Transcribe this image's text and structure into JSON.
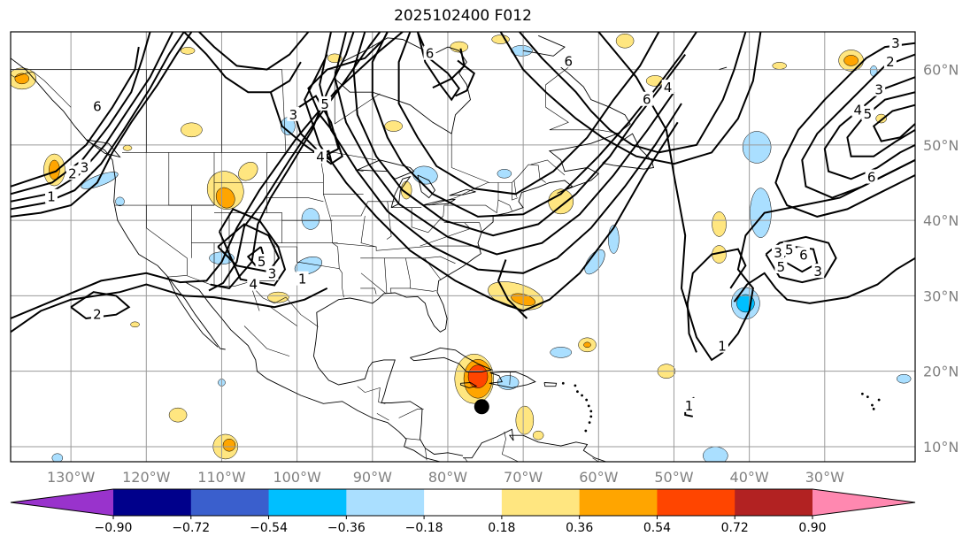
{
  "title": "2025102400 F012",
  "map": {
    "projection": "PlateCarree",
    "lon_range": [
      -138,
      -18
    ],
    "lat_range": [
      8,
      65
    ],
    "gridlines": true,
    "coastlines": true,
    "state_borders": true,
    "marker": {
      "lon": -75.5,
      "lat": 15.3,
      "shape": "filled-circle",
      "color": "#000000"
    }
  },
  "axes": {
    "lon_ticks": [
      {
        "value": -130,
        "label": "130°W"
      },
      {
        "value": -120,
        "label": "120°W"
      },
      {
        "value": -110,
        "label": "110°W"
      },
      {
        "value": -100,
        "label": "100°W"
      },
      {
        "value": -90,
        "label": "90°W"
      },
      {
        "value": -80,
        "label": "80°W"
      },
      {
        "value": -70,
        "label": "70°W"
      },
      {
        "value": -60,
        "label": "60°W"
      },
      {
        "value": -50,
        "label": "50°W"
      },
      {
        "value": -40,
        "label": "40°W"
      },
      {
        "value": -30,
        "label": "30°W"
      }
    ],
    "lat_ticks": [
      {
        "value": 60,
        "label": "60°N"
      },
      {
        "value": 50,
        "label": "50°N"
      },
      {
        "value": 40,
        "label": "40°N"
      },
      {
        "value": 30,
        "label": "30°N"
      },
      {
        "value": 20,
        "label": "20°N"
      },
      {
        "value": 10,
        "label": "10°N"
      }
    ]
  },
  "colorbar": {
    "extend": "both",
    "levels": [
      -0.9,
      -0.72,
      -0.54,
      -0.36,
      -0.18,
      0.18,
      0.36,
      0.54,
      0.72,
      0.9
    ],
    "tick_labels": [
      "−0.90",
      "−0.72",
      "−0.54",
      "−0.36",
      "−0.18",
      "0.18",
      "0.36",
      "0.54",
      "0.72",
      "0.90"
    ],
    "colors": [
      "#9933cc",
      "#00008b",
      "#3a5fcd",
      "#00bfff",
      "#aadfff",
      "#ffffff",
      "#ffe680",
      "#ffa500",
      "#ff4500",
      "#b22222",
      "#ff88b0"
    ]
  },
  "contour_labels": [
    {
      "text": "6",
      "lon": -126.5,
      "lat": 55.1
    },
    {
      "text": "3",
      "lon": -128.2,
      "lat": 47.0
    },
    {
      "text": "2",
      "lon": -129.8,
      "lat": 46.2
    },
    {
      "text": "1",
      "lon": -132.6,
      "lat": 43.1
    },
    {
      "text": "5",
      "lon": -104.7,
      "lat": 34.5
    },
    {
      "text": "3",
      "lon": -103.3,
      "lat": 32.9
    },
    {
      "text": "4",
      "lon": -105.8,
      "lat": 31.5
    },
    {
      "text": "1",
      "lon": -99.3,
      "lat": 32.2
    },
    {
      "text": "2",
      "lon": -126.5,
      "lat": 27.5
    },
    {
      "text": "3",
      "lon": -100.5,
      "lat": 54.0
    },
    {
      "text": "5",
      "lon": -96.3,
      "lat": 55.4
    },
    {
      "text": "4",
      "lon": -96.9,
      "lat": 48.4
    },
    {
      "text": "6",
      "lon": -82.4,
      "lat": 62.1
    },
    {
      "text": "6",
      "lon": -64.0,
      "lat": 61.1
    },
    {
      "text": "6",
      "lon": -53.6,
      "lat": 56.0
    },
    {
      "text": "4",
      "lon": -50.8,
      "lat": 57.6
    },
    {
      "text": "3",
      "lon": -20.6,
      "lat": 63.5
    },
    {
      "text": "2",
      "lon": -21.3,
      "lat": 61.0
    },
    {
      "text": "3",
      "lon": -22.8,
      "lat": 57.3
    },
    {
      "text": "4",
      "lon": -25.6,
      "lat": 54.6
    },
    {
      "text": "5",
      "lon": -24.3,
      "lat": 54.1
    },
    {
      "text": "6",
      "lon": -23.8,
      "lat": 45.7
    },
    {
      "text": "5",
      "lon": -35.8,
      "lat": 33.8
    },
    {
      "text": "3",
      "lon": -36.2,
      "lat": 35.7
    },
    {
      "text": "5",
      "lon": -34.7,
      "lat": 36.1
    },
    {
      "text": "6",
      "lon": -32.8,
      "lat": 35.4
    },
    {
      "text": "3",
      "lon": -30.9,
      "lat": 33.2
    },
    {
      "text": "1",
      "lon": -43.6,
      "lat": 23.3
    },
    {
      "text": "1",
      "lon": -48.0,
      "lat": 15.4
    }
  ]
}
